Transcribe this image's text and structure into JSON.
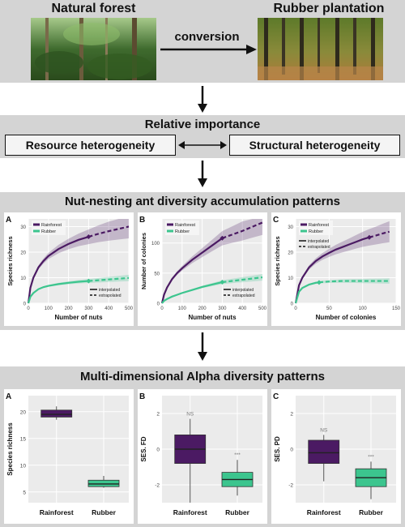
{
  "top": {
    "natural_forest": "Natural forest",
    "rubber_plantation": "Rubber plantation",
    "conversion": "conversion"
  },
  "importance": {
    "title": "Relative importance",
    "left": "Resource heterogeneity",
    "right": "Structural heterogeneity"
  },
  "accumulation": {
    "title": "Nut-nesting ant diversity accumulation patterns",
    "panels": [
      {
        "letter": "A",
        "ylabel": "Species richness",
        "xlabel": "Number of nuts",
        "xticks": [
          "0",
          "100",
          "200",
          "300",
          "400",
          "500"
        ],
        "yticks": [
          "0",
          "10",
          "20",
          "30"
        ]
      },
      {
        "letter": "B",
        "ylabel": "Number of colonies",
        "xlabel": "Number of nuts",
        "xticks": [
          "0",
          "100",
          "200",
          "300",
          "400",
          "500"
        ],
        "yticks": [
          "0",
          "50",
          "100"
        ]
      },
      {
        "letter": "C",
        "ylabel": "Species richness",
        "xlabel": "Number of colonies",
        "xticks": [
          "0",
          "50",
          "100",
          "150"
        ],
        "yticks": [
          "0",
          "10",
          "20",
          "30"
        ]
      }
    ],
    "legend": {
      "rainforest": "Rainforest",
      "rubber": "Rubber",
      "interpolated": "interpolated",
      "extrapolated": "extrapolated"
    }
  },
  "alpha": {
    "title": "Multi-dimensional Alpha diversity patterns",
    "panels": [
      {
        "letter": "A",
        "ylabel": "Species richness",
        "yticks": [
          "5",
          "10",
          "15",
          "20"
        ],
        "categories": [
          "Rainforest",
          "Rubber"
        ],
        "annot_rain": "",
        "annot_rub": ""
      },
      {
        "letter": "B",
        "ylabel": "SES. FD",
        "yticks": [
          "-2",
          "0",
          "2"
        ],
        "categories": [
          "Rainforest",
          "Rubber"
        ],
        "annot_rain": "NS",
        "annot_rub": "***"
      },
      {
        "letter": "C",
        "ylabel": "SES. PD",
        "yticks": [
          "-2",
          "0",
          "2"
        ],
        "categories": [
          "Rainforest",
          "Rubber"
        ],
        "annot_rain": "NS",
        "annot_rub": "***"
      }
    ]
  },
  "colors": {
    "rainforest": "#4b1a63",
    "rubber": "#3cc58e",
    "panel_bg": "#d4d4d4"
  },
  "chart_data": [
    {
      "type": "line",
      "title": "",
      "xlabel": "Number of nuts",
      "ylabel": "Species richness",
      "xlim": [
        0,
        500
      ],
      "ylim": [
        0,
        33
      ],
      "series": [
        {
          "name": "Rainforest",
          "x": [
            0,
            10,
            25,
            50,
            75,
            100,
            150,
            200,
            250,
            300,
            350,
            400,
            450,
            500
          ],
          "y": [
            0,
            6,
            10,
            14,
            16.5,
            18.5,
            21.2,
            23.2,
            24.8,
            26,
            27.2,
            28.2,
            29.1,
            30
          ],
          "observed_x": 300
        },
        {
          "name": "Rubber",
          "x": [
            0,
            10,
            25,
            50,
            75,
            100,
            150,
            200,
            250,
            300,
            350,
            400,
            450,
            500
          ],
          "y": [
            0,
            2.5,
            4,
            5.5,
            6.3,
            6.8,
            7.5,
            8,
            8.4,
            8.7,
            9,
            9.3,
            9.6,
            9.9
          ],
          "observed_x": 300
        }
      ]
    },
    {
      "type": "line",
      "title": "",
      "xlabel": "Number of nuts",
      "ylabel": "Number of colonies",
      "xlim": [
        0,
        500
      ],
      "ylim": [
        0,
        140
      ],
      "series": [
        {
          "name": "Rainforest",
          "x": [
            0,
            10,
            25,
            50,
            75,
            100,
            150,
            200,
            250,
            300,
            350,
            400,
            450,
            500
          ],
          "y": [
            0,
            14,
            26,
            40,
            50,
            58,
            72,
            84,
            96,
            108,
            114,
            120,
            127,
            134
          ],
          "observed_x": 300
        },
        {
          "name": "Rubber",
          "x": [
            0,
            10,
            25,
            50,
            75,
            100,
            150,
            200,
            250,
            300,
            350,
            400,
            450,
            500
          ],
          "y": [
            0,
            4,
            7,
            11,
            14,
            17,
            22,
            27,
            31,
            35,
            37,
            39,
            41,
            43
          ],
          "observed_x": 300
        }
      ]
    },
    {
      "type": "line",
      "title": "",
      "xlabel": "Number of colonies",
      "ylabel": "Species richness",
      "xlim": [
        0,
        150
      ],
      "ylim": [
        0,
        33
      ],
      "series": [
        {
          "name": "Rainforest",
          "x": [
            0,
            5,
            10,
            20,
            30,
            40,
            50,
            60,
            70,
            80,
            90,
            100,
            110,
            120,
            130,
            140
          ],
          "y": [
            0,
            7,
            10,
            14,
            16.5,
            18.3,
            19.7,
            21,
            22,
            23,
            24,
            25,
            25.8,
            26.5,
            27.3,
            28
          ],
          "observed_x": 110
        },
        {
          "name": "Rubber",
          "x": [
            0,
            5,
            10,
            20,
            30,
            40,
            50,
            60,
            70,
            80,
            90,
            100,
            110,
            120,
            130,
            140
          ],
          "y": [
            0,
            4.5,
            6,
            7.3,
            8,
            8.3,
            8.5,
            8.6,
            8.7,
            8.7,
            8.7,
            8.7,
            8.7,
            8.7,
            8.7,
            8.7
          ],
          "observed_x": 35
        }
      ]
    },
    {
      "type": "box",
      "title": "",
      "ylabel": "Species richness",
      "ylim": [
        3,
        23
      ],
      "categories": [
        "Rainforest",
        "Rubber"
      ],
      "boxes": [
        {
          "name": "Rainforest",
          "min": 18.5,
          "q1": 19,
          "median": 19.5,
          "q3": 20.3,
          "max": 21
        },
        {
          "name": "Rubber",
          "min": 5.8,
          "q1": 6,
          "median": 6.5,
          "q3": 7.2,
          "max": 8
        }
      ]
    },
    {
      "type": "box",
      "title": "",
      "ylabel": "SES. FD",
      "ylim": [
        -3,
        3
      ],
      "categories": [
        "Rainforest",
        "Rubber"
      ],
      "boxes": [
        {
          "name": "Rainforest",
          "min": -3,
          "q1": -0.8,
          "median": 0,
          "q3": 0.8,
          "max": 1.7
        },
        {
          "name": "Rubber",
          "min": -2.6,
          "q1": -2.1,
          "median": -1.7,
          "q3": -1.3,
          "max": -0.6
        }
      ]
    },
    {
      "type": "box",
      "title": "",
      "ylabel": "SES. PD",
      "ylim": [
        -3,
        3
      ],
      "categories": [
        "Rainforest",
        "Rubber"
      ],
      "boxes": [
        {
          "name": "Rainforest",
          "min": -1.8,
          "q1": -0.8,
          "median": -0.2,
          "q3": 0.5,
          "max": 0.8
        },
        {
          "name": "Rubber",
          "min": -2.8,
          "q1": -2.1,
          "median": -1.6,
          "q3": -1.1,
          "max": -0.7
        }
      ]
    }
  ]
}
